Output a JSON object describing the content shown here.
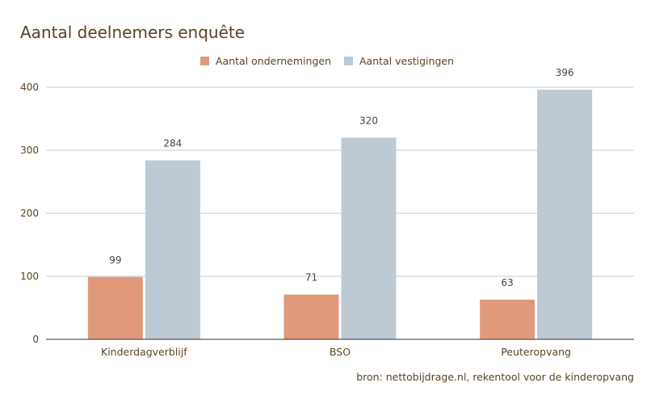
{
  "chart_data": {
    "type": "bar",
    "title": "Aantal deelnemers enquête",
    "categories": [
      "Kinderdagverblijf",
      "BSO",
      "Peuteropvang"
    ],
    "series": [
      {
        "name": "Aantal ondernemingen",
        "values": [
          99,
          71,
          63
        ],
        "color": "#e09a7b"
      },
      {
        "name": "Aantal vestigingen",
        "values": [
          284,
          320,
          396
        ],
        "color": "#bdcad3"
      }
    ],
    "yticks": [
      "0",
      "100",
      "200",
      "300",
      "400"
    ],
    "ylim": [
      0,
      400
    ],
    "grid": true,
    "legend": "top",
    "source": "bron: nettobijdrage.nl, rekentool voor de kinderopvang",
    "text_color": "#5b4321",
    "grid_color": "#c0ced8"
  }
}
